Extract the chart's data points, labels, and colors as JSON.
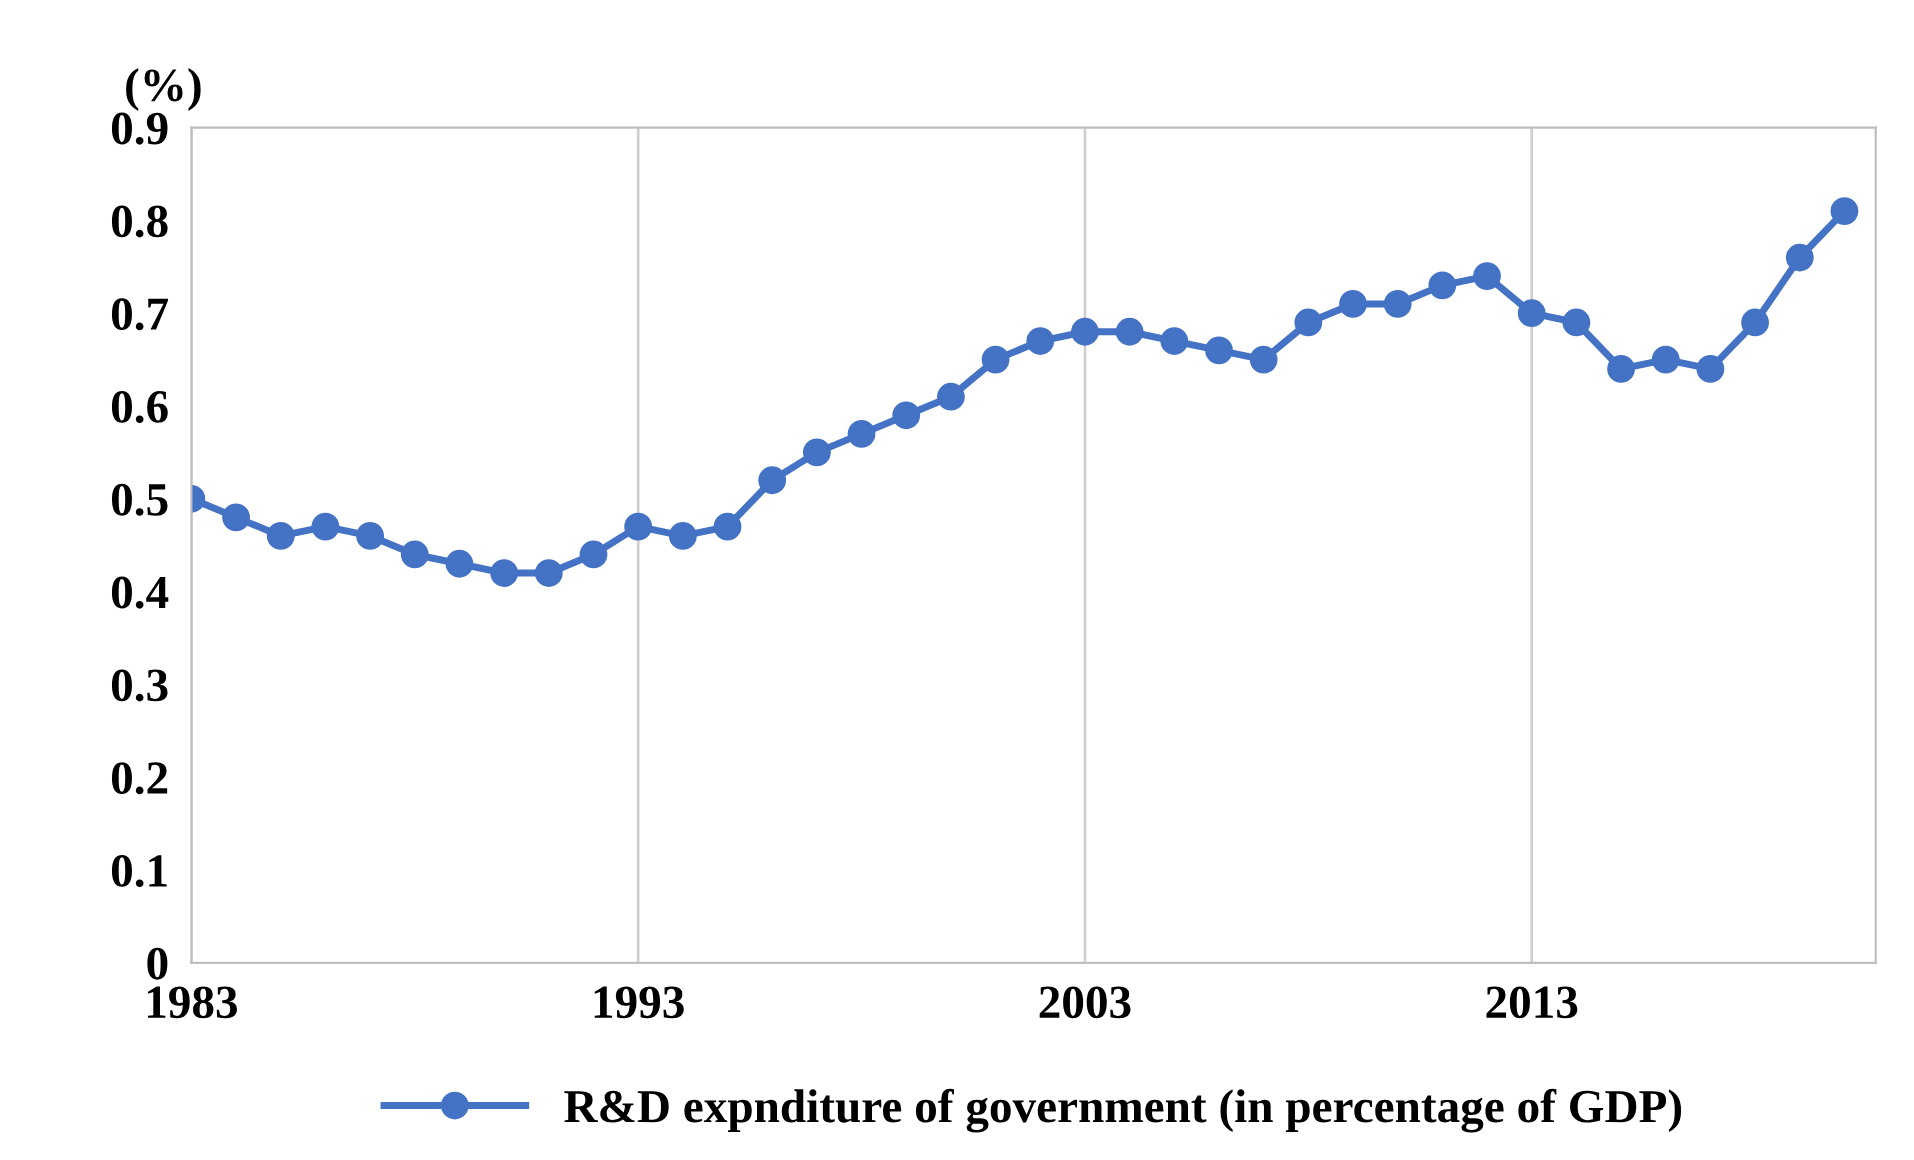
{
  "chart_data": {
    "type": "line",
    "ylabel": "(%)",
    "x": [
      1983,
      1984,
      1985,
      1986,
      1987,
      1988,
      1989,
      1990,
      1991,
      1992,
      1993,
      1994,
      1995,
      1996,
      1997,
      1998,
      1999,
      2000,
      2001,
      2002,
      2003,
      2004,
      2005,
      2006,
      2007,
      2008,
      2009,
      2010,
      2011,
      2012,
      2013,
      2014,
      2015,
      2016,
      2017,
      2018,
      2019,
      2020
    ],
    "series": [
      {
        "name": "R&D expnditure of government (in percentage of GDP)",
        "color": "#4472c4",
        "values": [
          0.5,
          0.48,
          0.46,
          0.47,
          0.46,
          0.44,
          0.43,
          0.42,
          0.42,
          0.44,
          0.47,
          0.46,
          0.47,
          0.52,
          0.55,
          0.57,
          0.59,
          0.61,
          0.65,
          0.67,
          0.68,
          0.68,
          0.67,
          0.66,
          0.65,
          0.69,
          0.71,
          0.71,
          0.73,
          0.74,
          0.7,
          0.69,
          0.64,
          0.65,
          0.64,
          0.69,
          0.76,
          0.81
        ]
      }
    ],
    "xlim": [
      1983,
      2020.7
    ],
    "xticks": [
      1983,
      1993,
      2003,
      2013
    ],
    "ylim": [
      0,
      0.9
    ],
    "yticks": [
      0,
      0.1,
      0.2,
      0.3,
      0.4,
      0.5,
      0.6,
      0.7,
      0.8,
      0.9
    ],
    "grid": "x",
    "legend": "bottom",
    "marker": "circle",
    "line_style": "solid"
  }
}
